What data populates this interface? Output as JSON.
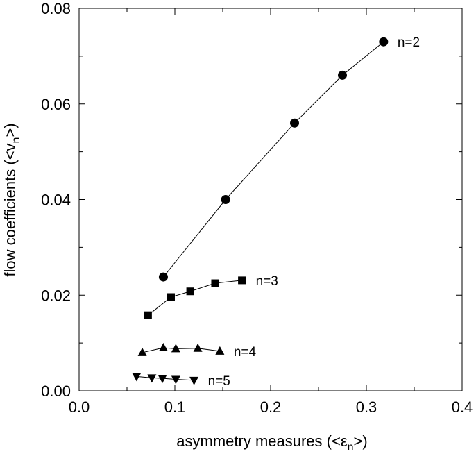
{
  "chart_data": {
    "type": "line",
    "title": "",
    "xlabel": {
      "prefix": "asymmetry measures (<",
      "symbol": "ε",
      "subscript": "n",
      "suffix": ">)"
    },
    "ylabel": {
      "prefix": "flow coefficients (<",
      "symbol": "v",
      "subscript": "n",
      "suffix": ">)"
    },
    "xlim": [
      0.0,
      0.4
    ],
    "ylim": [
      0.0,
      0.08
    ],
    "xticks": [
      0.0,
      0.1,
      0.2,
      0.3,
      0.4
    ],
    "xtick_labels": [
      "0.0",
      "0.1",
      "0.2",
      "0.3",
      "0.4"
    ],
    "yticks": [
      0.0,
      0.02,
      0.04,
      0.06,
      0.08
    ],
    "ytick_labels": [
      "0.00",
      "0.02",
      "0.04",
      "0.06",
      "0.08"
    ],
    "grid": false,
    "legend": "inline labels at end of each series",
    "series": [
      {
        "name": "n=2",
        "marker": "circle",
        "x": [
          0.088,
          0.153,
          0.225,
          0.275,
          0.318
        ],
        "y": [
          0.0238,
          0.04,
          0.056,
          0.066,
          0.073
        ]
      },
      {
        "name": "n=3",
        "marker": "square",
        "x": [
          0.072,
          0.096,
          0.116,
          0.142,
          0.17
        ],
        "y": [
          0.0158,
          0.0196,
          0.0208,
          0.0225,
          0.0231
        ]
      },
      {
        "name": "n=4",
        "marker": "triangle-up",
        "x": [
          0.066,
          0.088,
          0.101,
          0.124,
          0.147
        ],
        "y": [
          0.008,
          0.009,
          0.0088,
          0.0089,
          0.0083
        ]
      },
      {
        "name": "n=5",
        "marker": "triangle-down",
        "x": [
          0.06,
          0.076,
          0.087,
          0.101,
          0.12
        ],
        "y": [
          0.003,
          0.0027,
          0.0026,
          0.0024,
          0.0022
        ]
      }
    ]
  }
}
